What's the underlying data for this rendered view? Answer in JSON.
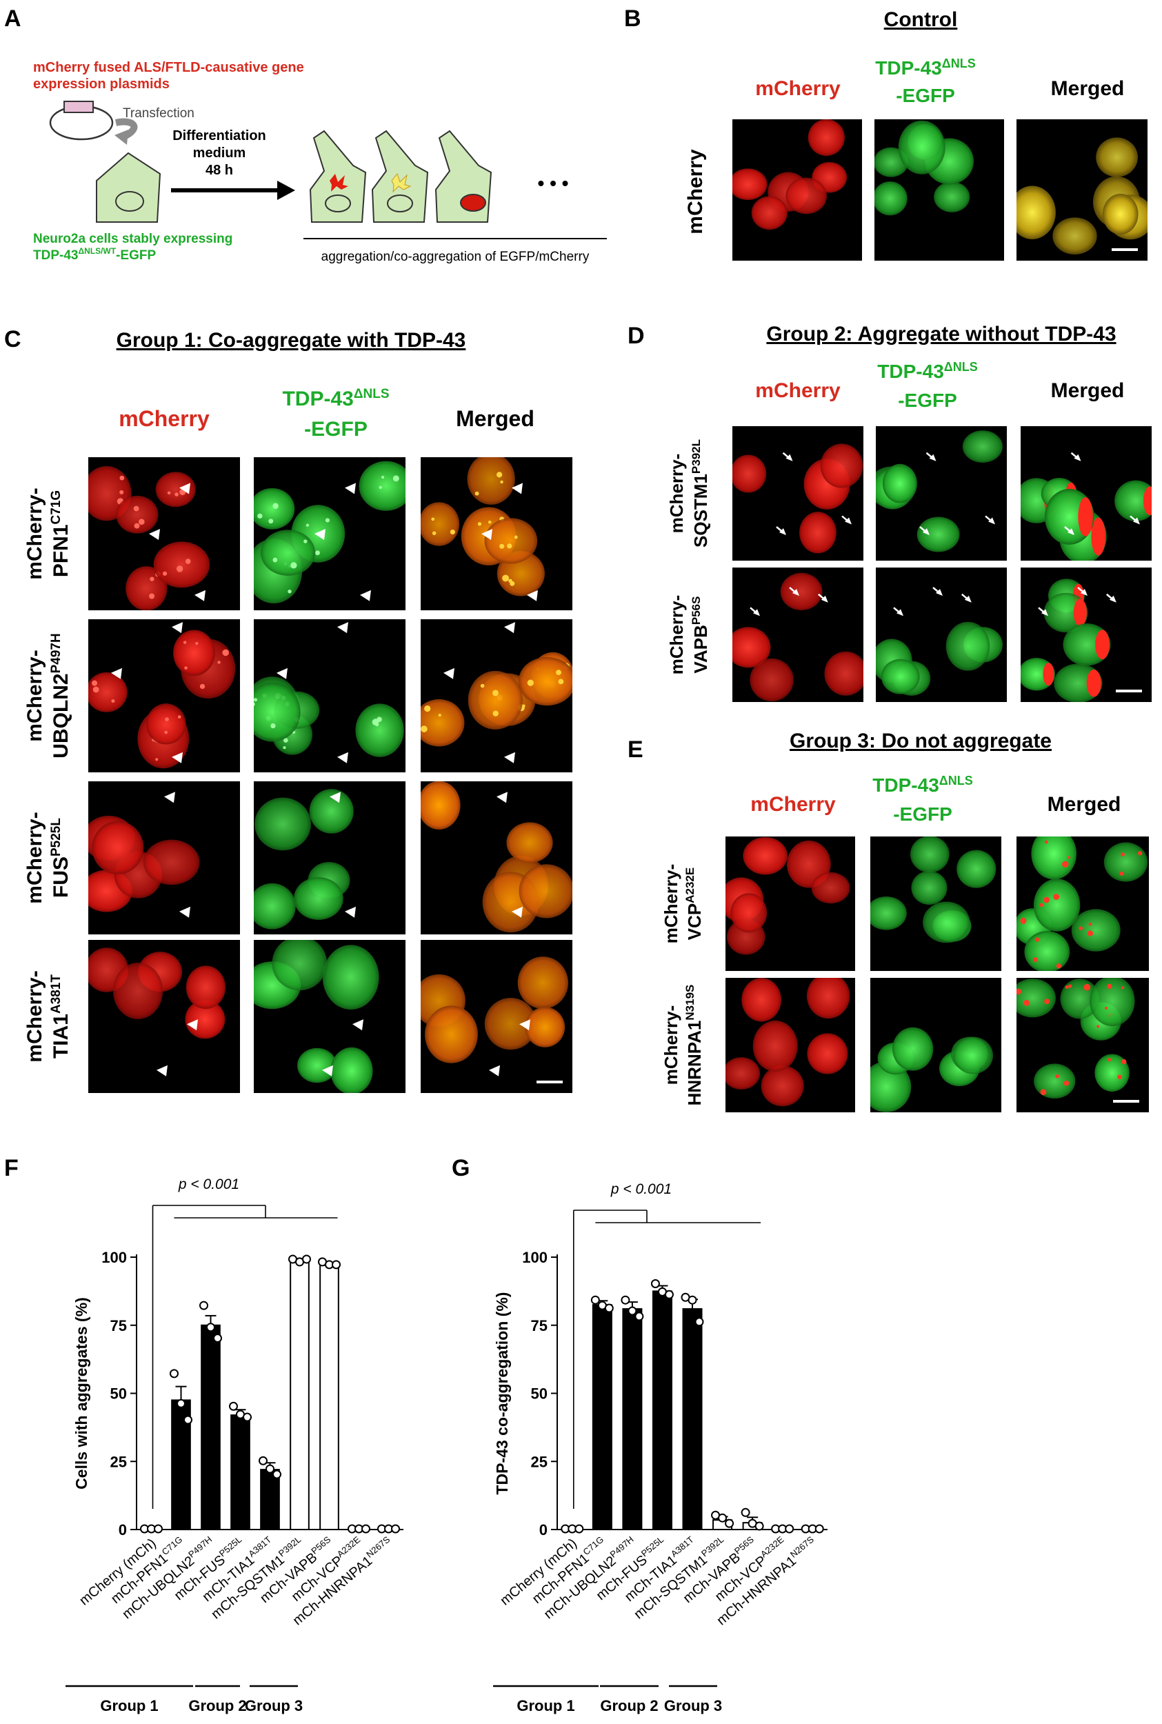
{
  "panels": {
    "A": {
      "letter": "A",
      "plasmid_label_1": "mCherry fused ALS/FTLD-causative gene",
      "plasmid_label_2": "expression plasmids",
      "transfection": "Transfection",
      "medium_1": "Differentiation",
      "medium_2": "medium",
      "medium_3": "48 h",
      "cells_label_1": "Neuro2a cells stably expressing",
      "cells_label_2": "TDP-43",
      "cells_label_sup": "ΔNLS/WT",
      "cells_label_3": "-EGFP",
      "dots": "• • •",
      "caption": "aggregation/co-aggregation of EGFP/mCherry"
    },
    "B": {
      "letter": "B",
      "title": "Control",
      "col1": "mCherry",
      "col2_1": "TDP-43",
      "col2_sup": "ΔNLS",
      "col2_2": "-EGFP",
      "col3": "Merged",
      "row": "mCherry"
    },
    "C": {
      "letter": "C",
      "title": "Group 1: Co-aggregate with TDP-43",
      "col1": "mCherry",
      "col2_1": "TDP-43",
      "col2_sup": "ΔNLS",
      "col2_2": "-EGFP",
      "col3": "Merged",
      "rows": [
        {
          "l1": "mCherry-",
          "l2": "PFN1",
          "sup": "C71G"
        },
        {
          "l1": "mCherry-",
          "l2": "UBQLN2",
          "sup": "P497H"
        },
        {
          "l1": "mCherry-",
          "l2": "FUS",
          "sup": "P525L"
        },
        {
          "l1": "mCherry-",
          "l2": "TIA1",
          "sup": "A381T"
        }
      ]
    },
    "D": {
      "letter": "D",
      "title": "Group 2: Aggregate without TDP-43",
      "col1": "mCherry",
      "col2_1": "TDP-43",
      "col2_sup": "ΔNLS",
      "col2_2": "-EGFP",
      "col3": "Merged",
      "rows": [
        {
          "l1": "mCherry-",
          "l2": "SQSTM1",
          "sup": "P392L"
        },
        {
          "l1": "mCherry-",
          "l2": "VAPB",
          "sup": "P56S"
        }
      ]
    },
    "E": {
      "letter": "E",
      "title": "Group 3: Do not aggregate",
      "col1": "mCherry",
      "col2_1": "TDP-43",
      "col2_sup": "ΔNLS",
      "col2_2": "-EGFP",
      "col3": "Merged",
      "rows": [
        {
          "l1": "mCherry-",
          "l2": "VCP",
          "sup": "A232E"
        },
        {
          "l1": "mCherry-",
          "l2": "HNRNPA1",
          "sup": "N319S"
        }
      ]
    },
    "F": {
      "letter": "F"
    },
    "G": {
      "letter": "G"
    }
  },
  "chart_data": [
    {
      "panel": "F",
      "type": "bar",
      "ylabel": "Cells with aggregates (%)",
      "ylim": [
        0,
        100
      ],
      "yticks": [
        "0",
        "25",
        "50",
        "75",
        "100"
      ],
      "significance": "p < 0.001",
      "categories": [
        {
          "name": "mCherry (mCh)",
          "sup": ""
        },
        {
          "name": "mCh-PFN1",
          "sup": "C71G"
        },
        {
          "name": "mCh-UBQLN2",
          "sup": "P497H"
        },
        {
          "name": "mCh-FUS",
          "sup": "P525L"
        },
        {
          "name": "mCh-TIA1",
          "sup": "A381T"
        },
        {
          "name": "mCh-SQSTM1",
          "sup": "P392L"
        },
        {
          "name": "mCh-VAPB",
          "sup": "P56S"
        },
        {
          "name": "mCh-VCP",
          "sup": "A232E"
        },
        {
          "name": "mCh-HNRNPA1",
          "sup": "N267S"
        }
      ],
      "values": [
        0,
        47.5,
        75,
        42,
        22,
        98.5,
        97,
        0,
        0
      ],
      "sem": [
        0,
        5,
        3.5,
        2,
        2.5,
        1,
        0.5,
        0,
        0
      ],
      "points": [
        [
          0,
          0,
          0
        ],
        [
          57,
          46,
          40
        ],
        [
          82,
          74,
          70
        ],
        [
          45,
          42,
          41
        ],
        [
          25,
          22,
          20
        ],
        [
          99,
          98,
          99
        ],
        [
          98,
          97,
          97
        ],
        [
          0,
          0,
          0
        ],
        [
          0,
          0,
          0
        ]
      ],
      "fills": [
        "black",
        "black",
        "black",
        "black",
        "black",
        "white",
        "white",
        "white",
        "white"
      ],
      "groups": [
        {
          "label": "Group 1",
          "from": 0,
          "to": 1
        },
        {
          "label": "Group 2",
          "from": 2,
          "to": 3
        },
        {
          "label": "Group 3",
          "from": 4,
          "to": 5
        }
      ]
    },
    {
      "panel": "G",
      "type": "bar",
      "ylabel": "TDP-43 co-aggregation (%)",
      "ylim": [
        0,
        100
      ],
      "yticks": [
        "0",
        "25",
        "50",
        "75",
        "100"
      ],
      "significance": "p < 0.001",
      "categories": [
        {
          "name": "mCherry (mCh)",
          "sup": ""
        },
        {
          "name": "mCh-PFN1",
          "sup": "C71G"
        },
        {
          "name": "mCh-UBQLN2",
          "sup": "P497H"
        },
        {
          "name": "mCh-FUS",
          "sup": "P525L"
        },
        {
          "name": "mCh-TIA1",
          "sup": "A381T"
        },
        {
          "name": "mCh-SQSTM1",
          "sup": "P392L"
        },
        {
          "name": "mCh-VAPB",
          "sup": "P56S"
        },
        {
          "name": "mCh-VCP",
          "sup": "A232E"
        },
        {
          "name": "mCh-HNRNPA1",
          "sup": "N267S"
        }
      ],
      "values": [
        0,
        82.5,
        81,
        87.5,
        81,
        3.5,
        2.5,
        0,
        0
      ],
      "sem": [
        0,
        1.5,
        2.5,
        2,
        3.5,
        1.2,
        2,
        0,
        0
      ],
      "points": [
        [
          0,
          0,
          0
        ],
        [
          84,
          82,
          81
        ],
        [
          84,
          80,
          78
        ],
        [
          90,
          87,
          86
        ],
        [
          85,
          84,
          76
        ],
        [
          5,
          4,
          2
        ],
        [
          6,
          2,
          1
        ],
        [
          0,
          0,
          0
        ],
        [
          0,
          0,
          0
        ]
      ],
      "fills": [
        "black",
        "black",
        "black",
        "black",
        "black",
        "white",
        "white",
        "white",
        "white"
      ],
      "groups": [
        {
          "label": "Group 1",
          "from": 0,
          "to": 1
        },
        {
          "label": "Group 2",
          "from": 2,
          "to": 3
        },
        {
          "label": "Group 3",
          "from": 4,
          "to": 5
        }
      ]
    }
  ]
}
